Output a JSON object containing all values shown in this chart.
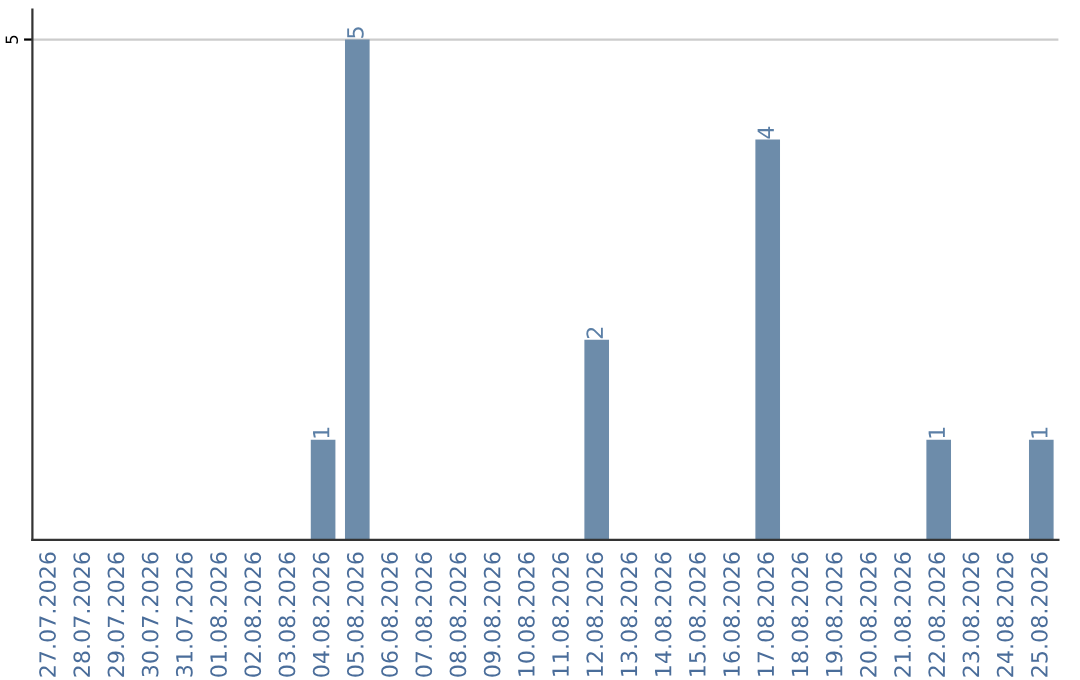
{
  "chart_data": {
    "type": "bar",
    "categories": [
      "27.07.2026",
      "28.07.2026",
      "29.07.2026",
      "30.07.2026",
      "31.07.2026",
      "01.08.2026",
      "02.08.2026",
      "03.08.2026",
      "04.08.2026",
      "05.08.2026",
      "06.08.2026",
      "07.08.2026",
      "08.08.2026",
      "09.08.2026",
      "10.08.2026",
      "11.08.2026",
      "12.08.2026",
      "13.08.2026",
      "14.08.2026",
      "15.08.2026",
      "16.08.2026",
      "17.08.2026",
      "18.08.2026",
      "19.08.2026",
      "20.08.2026",
      "21.08.2026",
      "22.08.2026",
      "23.08.2026",
      "24.08.2026",
      "25.08.2026"
    ],
    "values": [
      0,
      0,
      0,
      0,
      0,
      0,
      0,
      0,
      1,
      5,
      0,
      0,
      0,
      0,
      0,
      0,
      2,
      0,
      0,
      0,
      0,
      4,
      0,
      0,
      0,
      0,
      1,
      0,
      0,
      1
    ],
    "value_labels": [
      null,
      null,
      null,
      null,
      null,
      null,
      null,
      null,
      "1",
      "5",
      null,
      null,
      null,
      null,
      null,
      null,
      "2",
      null,
      null,
      null,
      null,
      "4",
      null,
      null,
      null,
      null,
      "1",
      null,
      null,
      "1"
    ],
    "color": "#6d8caa",
    "ylim": [
      0,
      5.3
    ],
    "yticks": [
      5
    ],
    "grid": "y"
  }
}
